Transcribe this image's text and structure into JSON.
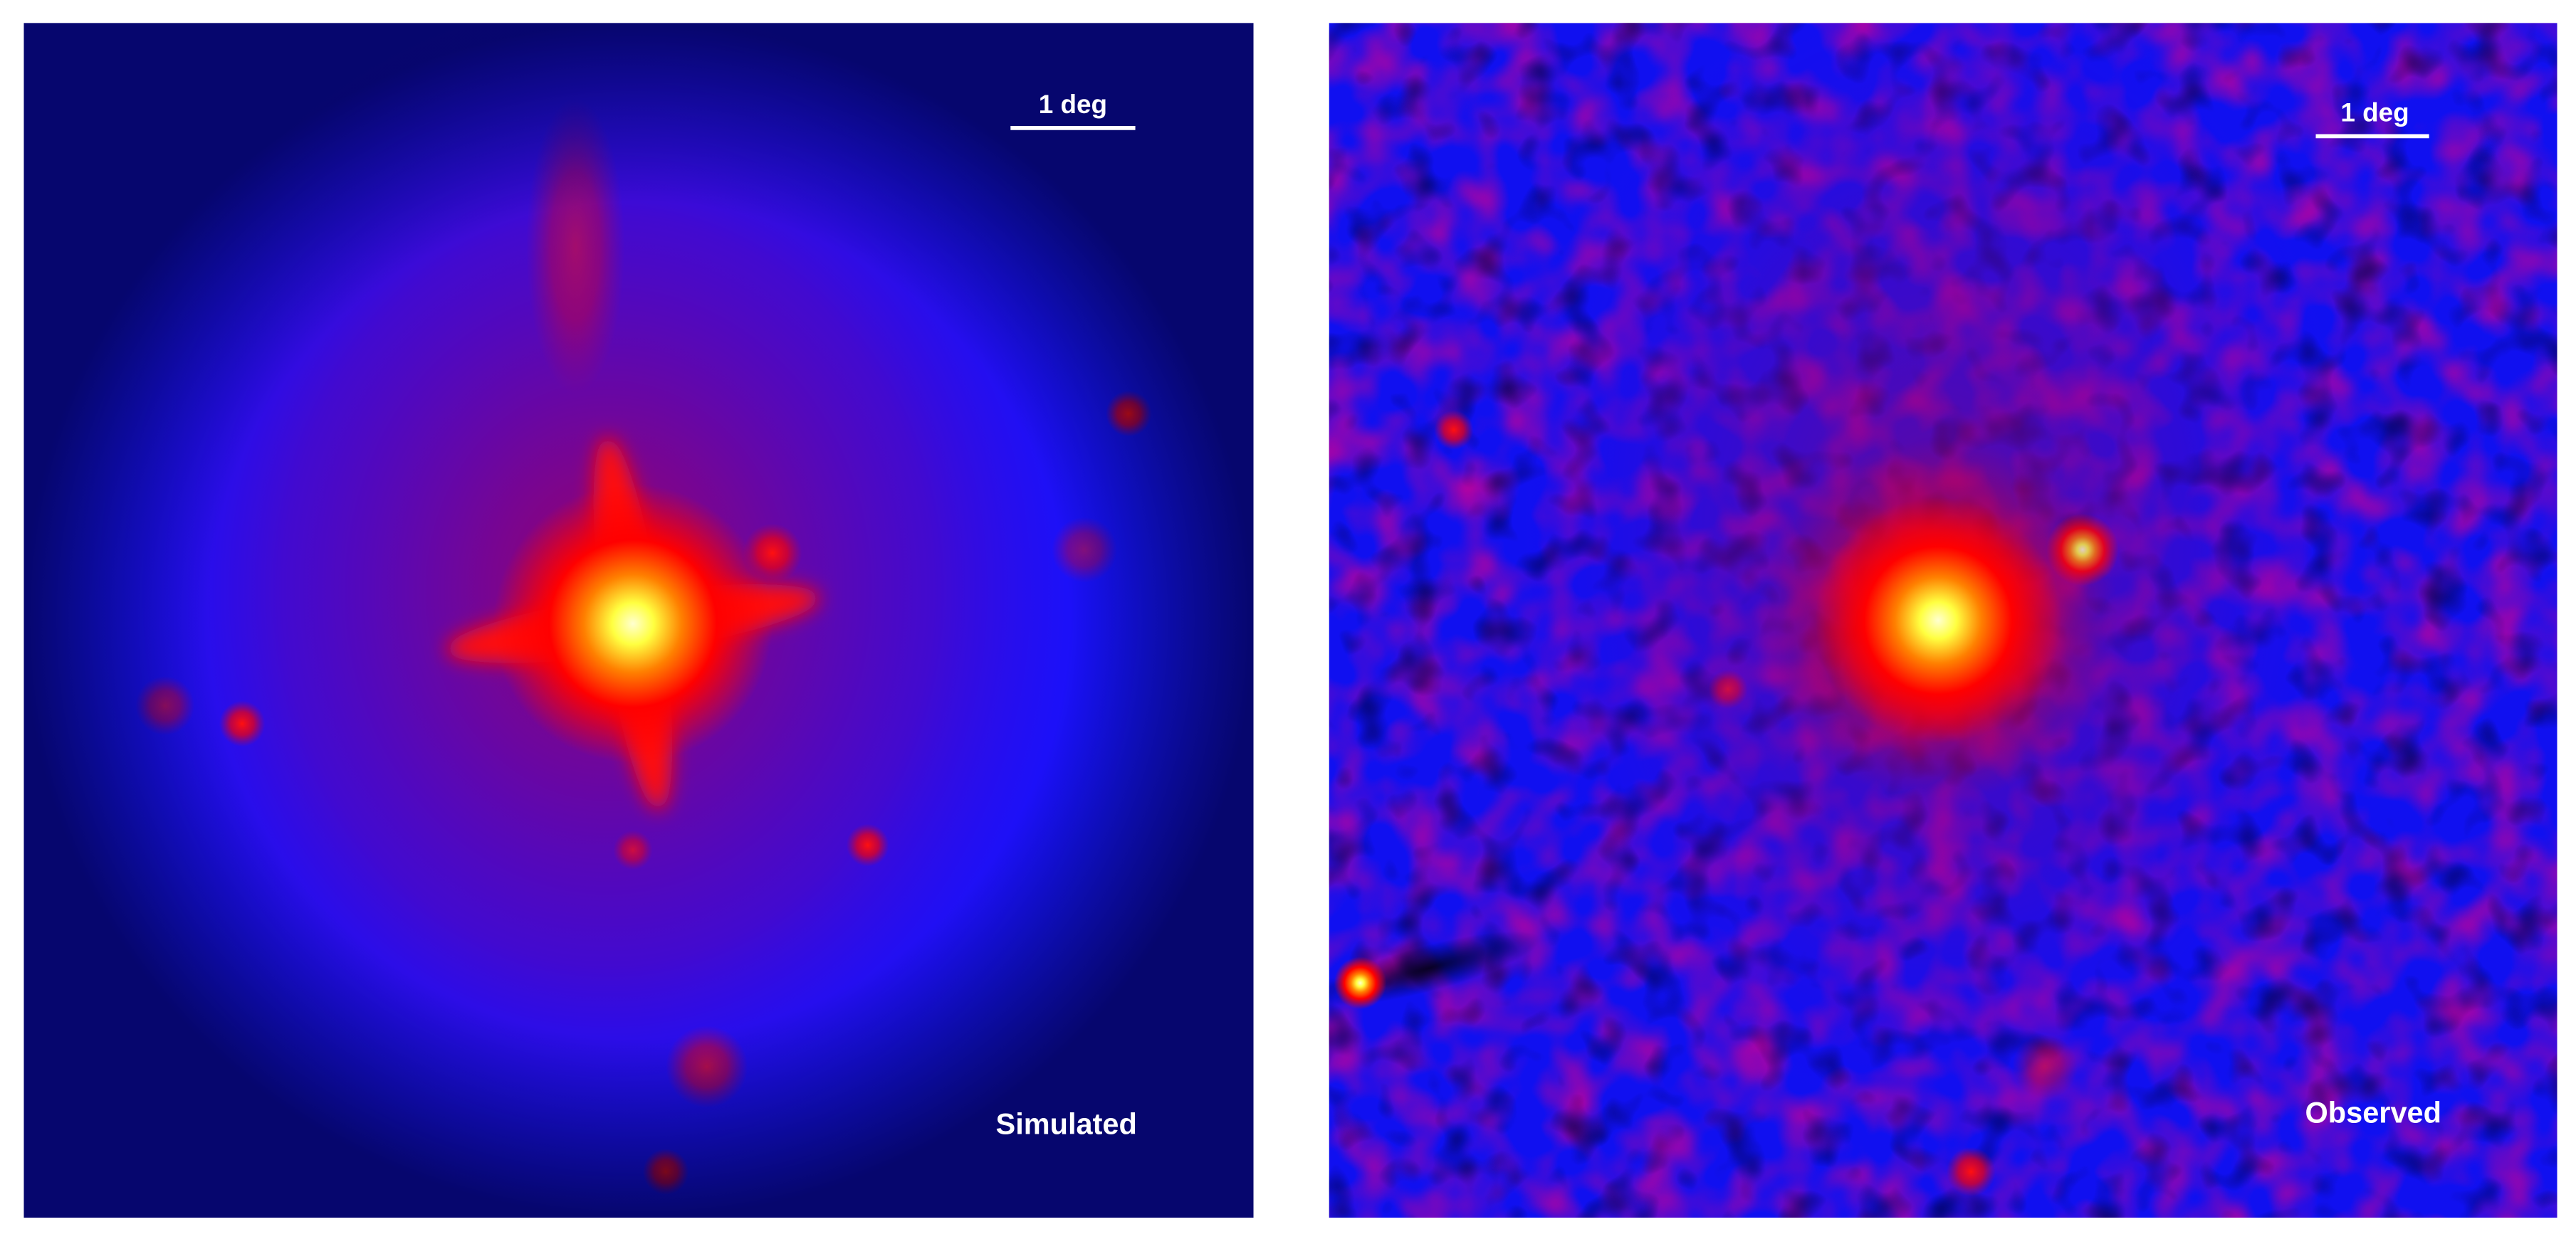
{
  "panels": [
    {
      "label": "Simulated",
      "scale_bar": "1 deg"
    },
    {
      "label": "Observed",
      "scale_bar": "1 deg"
    }
  ]
}
